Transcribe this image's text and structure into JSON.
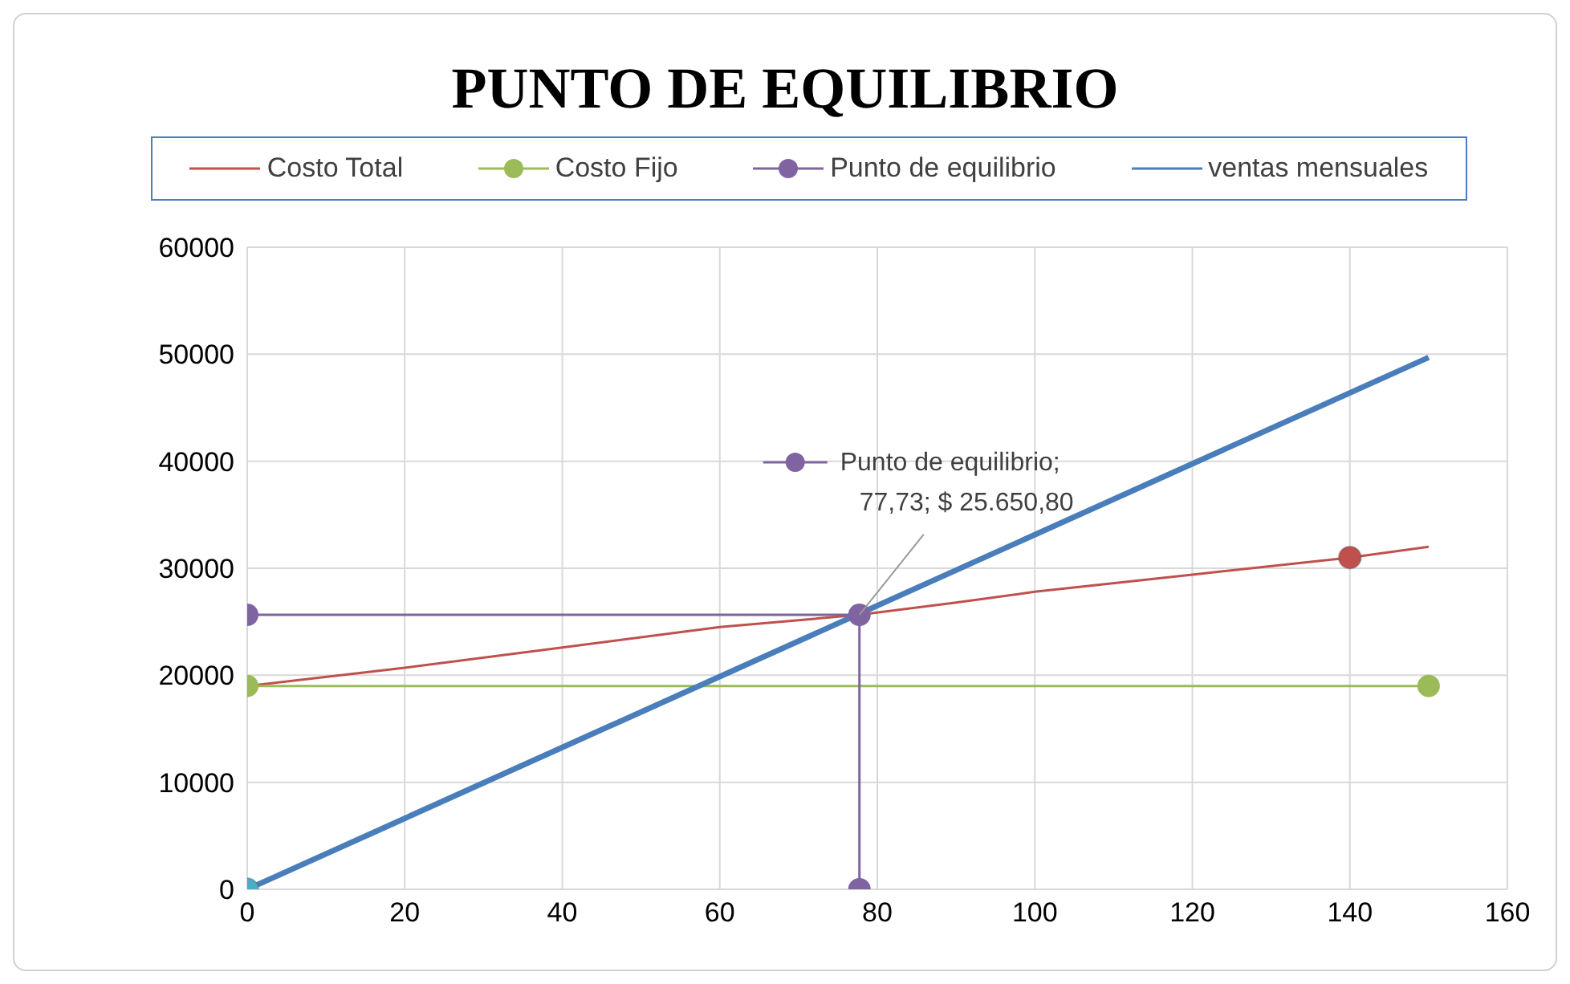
{
  "chart_data": {
    "type": "line",
    "title": "PUNTO DE EQUILIBRIO",
    "xlim": [
      0,
      160
    ],
    "xticks": [
      0,
      20,
      40,
      60,
      80,
      100,
      120,
      140,
      160
    ],
    "ylim": [
      0,
      60000
    ],
    "yticks": [
      0,
      10000,
      20000,
      30000,
      40000,
      50000,
      60000
    ],
    "grid": true,
    "legend": "top",
    "series": [
      {
        "name": "Costo Total",
        "color": "#c0504d",
        "marker": "none",
        "x": [
          0,
          20,
          40,
          60,
          77.73,
          90,
          100,
          120,
          140,
          150
        ],
        "values": [
          19000,
          20700,
          22600,
          24500,
          25650,
          26800,
          27800,
          29400,
          31000,
          32000
        ]
      },
      {
        "color": "#c0504d",
        "type": "scatter",
        "marker": "circle",
        "x": [
          140
        ],
        "values": [
          31000
        ]
      },
      {
        "name": "Costo Fijo",
        "color": "#9bbb59",
        "marker": "circle",
        "x": [
          0,
          150
        ],
        "values": [
          19000,
          19000
        ]
      },
      {
        "name": "Punto de equilibrio",
        "color": "#8064a2",
        "marker": "circle",
        "x": [
          0,
          77.73,
          77.73
        ],
        "values": [
          25650,
          25650,
          0
        ]
      },
      {
        "name": "ventas mensuales",
        "color": "#4a7ebb",
        "marker": "none",
        "x": [
          0,
          150
        ],
        "values": [
          0,
          49700
        ]
      },
      {
        "color": "#4bacc6",
        "type": "scatter",
        "marker": "circle",
        "x": [
          0
        ],
        "values": [
          0
        ]
      }
    ],
    "annotations": [
      {
        "text": "Punto de equilibrio;\n77,73; $ 25.650,80",
        "x": 77.73,
        "y": 25650.8
      }
    ]
  }
}
